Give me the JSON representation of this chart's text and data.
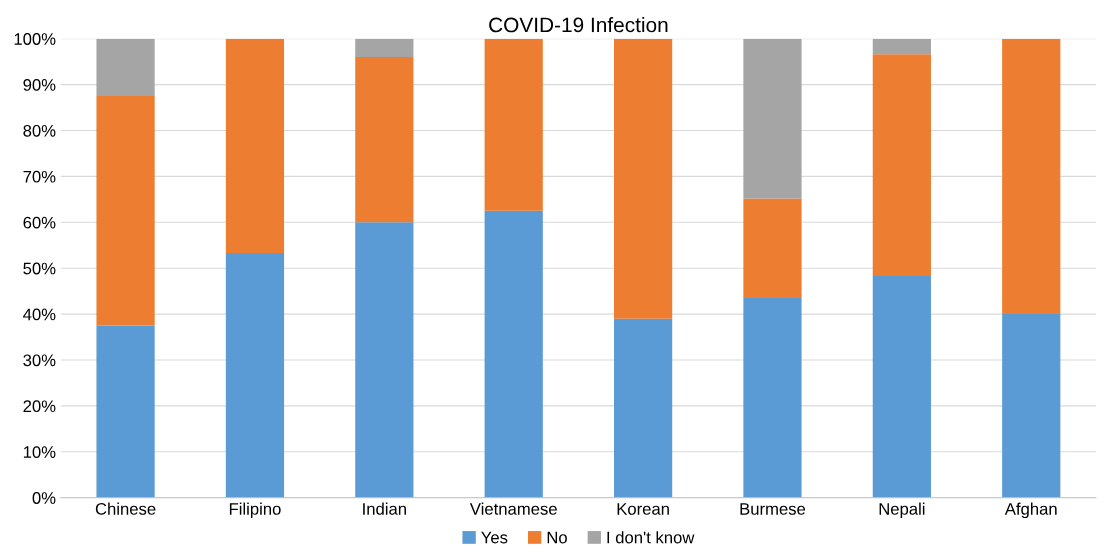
{
  "chart_data": {
    "type": "bar",
    "title": "COVID-19 Infection",
    "categories": [
      "Chinese",
      "Filipino",
      "Indian",
      "Vietnamese",
      "Korean",
      "Burmese",
      "Nepali",
      "Afghan"
    ],
    "stacked": true,
    "series": [
      {
        "name": "Yes",
        "color": "#5b9bd5",
        "values": [
          37.5,
          53.3,
          60,
          62.5,
          39,
          43.5,
          48.3,
          40
        ]
      },
      {
        "name": "No",
        "color": "#ed7d31",
        "values": [
          50,
          46.7,
          36,
          37.5,
          61,
          21.7,
          48.3,
          60
        ]
      },
      {
        "name": "I don't know",
        "color": "#a5a5a5",
        "values": [
          12.5,
          0,
          4,
          0,
          0,
          34.8,
          3.4,
          0
        ]
      }
    ],
    "ylim": [
      0,
      100
    ],
    "yticks": [
      {
        "value": 0,
        "label": "0%"
      },
      {
        "value": 10,
        "label": "10%"
      },
      {
        "value": 20,
        "label": "20%"
      },
      {
        "value": 30,
        "label": "30%"
      },
      {
        "value": 40,
        "label": "40%"
      },
      {
        "value": 50,
        "label": "50%"
      },
      {
        "value": 60,
        "label": "60%"
      },
      {
        "value": 70,
        "label": "70%"
      },
      {
        "value": 80,
        "label": "80%"
      },
      {
        "value": 90,
        "label": "90%"
      },
      {
        "value": 100,
        "label": "100%"
      }
    ],
    "grid": "y",
    "legend": "bottom"
  }
}
